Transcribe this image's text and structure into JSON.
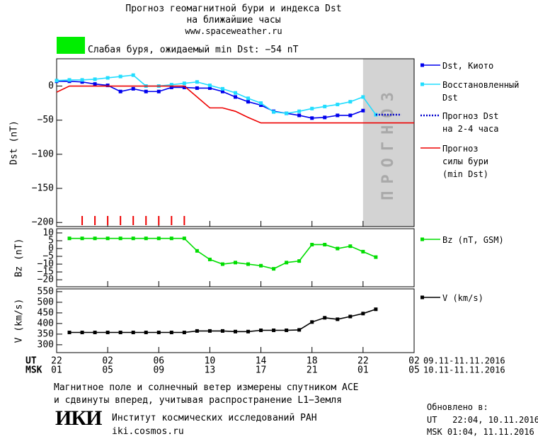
{
  "header": {
    "title_line1": "Прогноз геомагнитной бури и индекса Dst",
    "title_line2": "на ближайшие часы",
    "url": "www.spaceweather.ru",
    "alert": "Слабая буря, ожидаемый min Dst: −54 nT",
    "alert_color": "#00ee00"
  },
  "chart_data": [
    {
      "type": "line",
      "ylabel": "Dst (nT)",
      "xlim": [
        0,
        28
      ],
      "ylim": [
        -206,
        40
      ],
      "yticks": [
        {
          "value": 0,
          "label": "0"
        },
        {
          "value": -50,
          "label": "−50"
        },
        {
          "value": -100,
          "label": "−100"
        },
        {
          "value": -150,
          "label": "−150"
        },
        {
          "value": -200,
          "label": "−200"
        }
      ],
      "forecast_start": 24,
      "forecast_label": "ПРОГНОЗ",
      "forecast_color": "#d3d3d3",
      "storm_hours": [
        2,
        3,
        4,
        5,
        6,
        7,
        8,
        9,
        10
      ],
      "storm_color": "#ee0000",
      "series": [
        {
          "name": "Dst, Киото",
          "color": "#0000ee",
          "marker": "square",
          "dash": "solid",
          "x": [
            0,
            1,
            2,
            3,
            4,
            5,
            6,
            7,
            8,
            9,
            10,
            11,
            12,
            13,
            14,
            15,
            16,
            17,
            18,
            19,
            20,
            21,
            22,
            23,
            24
          ],
          "values": [
            7,
            7,
            6,
            3,
            1,
            -8,
            -4,
            -8,
            -8,
            -2,
            -2,
            -3,
            -3,
            -8,
            -16,
            -23,
            -28,
            -37,
            -40,
            -43,
            -47,
            -46,
            -43,
            -43,
            -36
          ]
        },
        {
          "name": "Восстановленный\nDst",
          "color": "#22ddff",
          "marker": "square",
          "dash": "solid",
          "x": [
            0,
            1,
            2,
            3,
            4,
            5,
            6,
            7,
            8,
            9,
            10,
            11,
            12,
            13,
            14,
            15,
            16,
            17,
            18,
            19,
            20,
            21,
            22,
            23,
            24,
            25
          ],
          "values": [
            8,
            9,
            9,
            10,
            12,
            14,
            16,
            0,
            0,
            2,
            4,
            6,
            1,
            -4,
            -10,
            -18,
            -25,
            -38,
            -40,
            -37,
            -33,
            -30,
            -27,
            -23,
            -16,
            -42
          ]
        },
        {
          "name": "Прогноз Dst\nна 2-4 часа",
          "color": "#0000cc",
          "marker": "none",
          "dash": "dotted",
          "x": [
            25,
            26,
            27
          ],
          "values": [
            -42,
            -42,
            -42
          ]
        },
        {
          "name": "Прогноз\nсилы бури\n(min Dst)",
          "color": "#ee0000",
          "marker": "none",
          "dash": "solid",
          "x": [
            0,
            1,
            10,
            12,
            13,
            14,
            15,
            16,
            28
          ],
          "values": [
            -9,
            0,
            0,
            -32,
            -32,
            -37,
            -46,
            -54,
            -54
          ]
        }
      ]
    },
    {
      "type": "line",
      "ylabel": "Bz (nT)",
      "xlim": [
        0,
        28
      ],
      "ylim": [
        -24.5,
        12.7
      ],
      "yticks": [
        10,
        5,
        0,
        {
          "value": -5,
          "label": "−5"
        },
        {
          "value": -10,
          "label": "−10"
        },
        {
          "value": -15,
          "label": "−15"
        },
        {
          "value": -20,
          "label": "−20"
        }
      ],
      "series": [
        {
          "name": "Bz (nT, GSM)",
          "color": "#00dd00",
          "marker": "square",
          "dash": "solid",
          "x": [
            1,
            2,
            3,
            4,
            5,
            6,
            7,
            8,
            9,
            10,
            11,
            12,
            13,
            14,
            15,
            16,
            17,
            18,
            19,
            20,
            21,
            22,
            23,
            24,
            25
          ],
          "values": [
            6.5,
            6.5,
            6.5,
            6.5,
            6.5,
            6.5,
            6.5,
            6.5,
            6.5,
            6.5,
            -1.5,
            -7,
            -10,
            -9,
            -10,
            -11,
            -13,
            -9,
            -8,
            2.5,
            2.5,
            0,
            1.5,
            -2,
            -5.5
          ]
        }
      ]
    },
    {
      "type": "line",
      "ylabel": "V (km/s)",
      "xlim": [
        0,
        28
      ],
      "ylim": [
        263,
        563
      ],
      "yticks": [
        550,
        500,
        450,
        400,
        350,
        300
      ],
      "xticks": [
        {
          "value": 0,
          "label": "22"
        },
        {
          "value": 4,
          "label": "02"
        },
        {
          "value": 8,
          "label": "06"
        },
        {
          "value": 12,
          "label": "10"
        },
        {
          "value": 16,
          "label": "14"
        },
        {
          "value": 20,
          "label": "18"
        },
        {
          "value": 24,
          "label": "22"
        },
        {
          "value": 28,
          "label": "02"
        }
      ],
      "xticks_msk": [
        {
          "value": 0,
          "label": "01"
        },
        {
          "value": 4,
          "label": "05"
        },
        {
          "value": 8,
          "label": "09"
        },
        {
          "value": 12,
          "label": "13"
        },
        {
          "value": 16,
          "label": "17"
        },
        {
          "value": 20,
          "label": "21"
        },
        {
          "value": 24,
          "label": "01"
        },
        {
          "value": 28,
          "label": "05"
        }
      ],
      "x_row_labels": [
        "UT",
        "MSK"
      ],
      "x_ranges": [
        "09.11-11.11.2016",
        "10.11-11.11.2016"
      ],
      "series": [
        {
          "name": "V (km/s)",
          "color": "#000000",
          "marker": "square",
          "dash": "solid",
          "x": [
            1,
            2,
            3,
            4,
            5,
            6,
            7,
            8,
            9,
            10,
            11,
            12,
            13,
            14,
            15,
            16,
            17,
            18,
            19,
            20,
            21,
            22,
            23,
            24,
            25
          ],
          "values": [
            358,
            358,
            358,
            358,
            358,
            358,
            358,
            358,
            358,
            358,
            365,
            365,
            365,
            362,
            362,
            368,
            368,
            368,
            370,
            407,
            427,
            420,
            433,
            447,
            467
          ]
        }
      ]
    }
  ],
  "footer": {
    "note_line1": "Магнитное поле и солнечный ветер измерены спутником ACE",
    "note_line2": "и сдвинуты вперед, учитывая распространение L1−Земля",
    "logo": "ИКИ",
    "institute": "Институт космических исследований РАН",
    "site": "iki.cosmos.ru",
    "updated": "Обновлено в:",
    "updated_ut": "UT   22:04, 10.11.2016",
    "updated_msk": "MSK 01:04, 11.11.2016"
  }
}
